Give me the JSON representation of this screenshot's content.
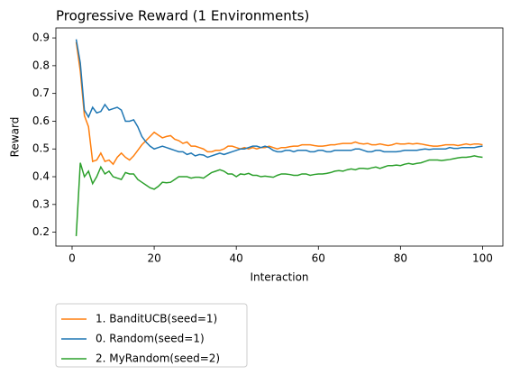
{
  "chart_data": {
    "type": "line",
    "title": "Progressive Reward (1 Environments)",
    "x_label": "Interaction",
    "y_label": "Reward",
    "x": [
      1,
      2,
      3,
      4,
      5,
      6,
      7,
      8,
      9,
      10,
      11,
      12,
      13,
      14,
      15,
      16,
      17,
      18,
      19,
      20,
      21,
      22,
      23,
      24,
      25,
      26,
      27,
      28,
      29,
      30,
      31,
      32,
      33,
      34,
      35,
      36,
      37,
      38,
      39,
      40,
      41,
      42,
      43,
      44,
      45,
      46,
      47,
      48,
      49,
      50,
      51,
      52,
      53,
      54,
      55,
      56,
      57,
      58,
      59,
      60,
      61,
      62,
      63,
      64,
      65,
      66,
      67,
      68,
      69,
      70,
      71,
      72,
      73,
      74,
      75,
      76,
      77,
      78,
      79,
      80,
      81,
      82,
      83,
      84,
      85,
      86,
      87,
      88,
      89,
      90,
      91,
      92,
      93,
      94,
      95,
      96,
      97,
      98,
      99,
      100
    ],
    "series": [
      {
        "name": "1. BanditUCB(seed=1)",
        "color": "#ff7f0e",
        "values": [
          0.885,
          0.78,
          0.62,
          0.58,
          0.455,
          0.46,
          0.485,
          0.455,
          0.46,
          0.445,
          0.47,
          0.485,
          0.47,
          0.46,
          0.475,
          0.495,
          0.515,
          0.53,
          0.545,
          0.56,
          0.55,
          0.54,
          0.545,
          0.548,
          0.535,
          0.53,
          0.52,
          0.525,
          0.51,
          0.51,
          0.505,
          0.5,
          0.49,
          0.49,
          0.495,
          0.495,
          0.5,
          0.51,
          0.51,
          0.505,
          0.5,
          0.505,
          0.5,
          0.505,
          0.5,
          0.505,
          0.505,
          0.51,
          0.505,
          0.5,
          0.505,
          0.505,
          0.508,
          0.51,
          0.51,
          0.515,
          0.515,
          0.515,
          0.512,
          0.51,
          0.51,
          0.512,
          0.515,
          0.515,
          0.518,
          0.52,
          0.52,
          0.52,
          0.525,
          0.52,
          0.518,
          0.52,
          0.515,
          0.515,
          0.518,
          0.515,
          0.512,
          0.515,
          0.52,
          0.518,
          0.518,
          0.52,
          0.518,
          0.52,
          0.518,
          0.515,
          0.512,
          0.51,
          0.51,
          0.512,
          0.515,
          0.515,
          0.515,
          0.512,
          0.515,
          0.518,
          0.515,
          0.518,
          0.518,
          0.515
        ]
      },
      {
        "name": "0. Random(seed=1)",
        "color": "#1f77b4",
        "values": [
          0.895,
          0.81,
          0.64,
          0.615,
          0.65,
          0.63,
          0.635,
          0.66,
          0.64,
          0.645,
          0.65,
          0.64,
          0.6,
          0.6,
          0.605,
          0.58,
          0.545,
          0.525,
          0.51,
          0.5,
          0.505,
          0.51,
          0.505,
          0.5,
          0.495,
          0.49,
          0.49,
          0.48,
          0.485,
          0.475,
          0.48,
          0.478,
          0.47,
          0.475,
          0.48,
          0.485,
          0.48,
          0.485,
          0.49,
          0.495,
          0.5,
          0.5,
          0.505,
          0.51,
          0.51,
          0.505,
          0.51,
          0.505,
          0.495,
          0.49,
          0.49,
          0.495,
          0.495,
          0.49,
          0.495,
          0.495,
          0.495,
          0.49,
          0.49,
          0.495,
          0.495,
          0.49,
          0.49,
          0.495,
          0.495,
          0.495,
          0.495,
          0.495,
          0.5,
          0.5,
          0.495,
          0.49,
          0.49,
          0.495,
          0.495,
          0.49,
          0.49,
          0.49,
          0.49,
          0.492,
          0.495,
          0.495,
          0.495,
          0.495,
          0.498,
          0.5,
          0.498,
          0.5,
          0.5,
          0.5,
          0.5,
          0.505,
          0.502,
          0.502,
          0.505,
          0.505,
          0.505,
          0.505,
          0.508,
          0.51
        ]
      },
      {
        "name": "2. MyRandom(seed=2)",
        "color": "#2ca02c",
        "values": [
          0.186,
          0.45,
          0.4,
          0.42,
          0.375,
          0.4,
          0.435,
          0.41,
          0.42,
          0.4,
          0.395,
          0.39,
          0.415,
          0.41,
          0.41,
          0.39,
          0.38,
          0.37,
          0.36,
          0.355,
          0.365,
          0.38,
          0.378,
          0.38,
          0.39,
          0.4,
          0.4,
          0.4,
          0.395,
          0.398,
          0.398,
          0.395,
          0.405,
          0.415,
          0.42,
          0.425,
          0.42,
          0.41,
          0.41,
          0.4,
          0.41,
          0.408,
          0.412,
          0.405,
          0.405,
          0.4,
          0.402,
          0.4,
          0.398,
          0.405,
          0.41,
          0.41,
          0.408,
          0.405,
          0.405,
          0.41,
          0.41,
          0.405,
          0.408,
          0.41,
          0.41,
          0.412,
          0.415,
          0.42,
          0.422,
          0.42,
          0.425,
          0.428,
          0.425,
          0.43,
          0.43,
          0.428,
          0.432,
          0.435,
          0.43,
          0.435,
          0.44,
          0.44,
          0.442,
          0.44,
          0.445,
          0.448,
          0.445,
          0.448,
          0.45,
          0.455,
          0.46,
          0.46,
          0.46,
          0.458,
          0.46,
          0.462,
          0.465,
          0.468,
          0.47,
          0.47,
          0.472,
          0.475,
          0.472,
          0.47
        ]
      }
    ],
    "xlim": [
      -3.95,
      104.95
    ],
    "ylim": [
      0.15,
      0.936
    ],
    "xticks": [
      0,
      20,
      40,
      60,
      80,
      100
    ],
    "yticks": [
      0.2,
      0.3,
      0.4,
      0.5,
      0.6,
      0.7,
      0.8,
      0.9
    ],
    "grid": false,
    "legend": "below-left"
  }
}
